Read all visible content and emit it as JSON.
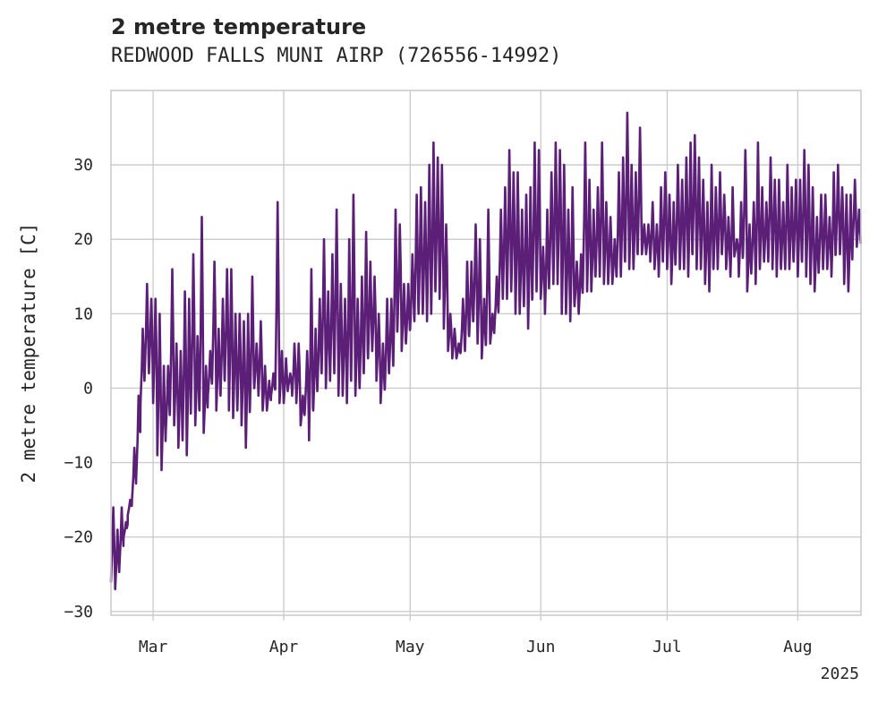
{
  "chart_data": {
    "type": "line",
    "title": "2 metre temperature",
    "subtitle": "REDWOOD FALLS MUNI AIRP (726556-14992)",
    "xlabel": "",
    "ylabel": "2 metre temperature [C]",
    "xlim": [
      "2025-02-19",
      "2025-08-16"
    ],
    "ylim": [
      -30.5,
      40
    ],
    "grid": true,
    "yticks": [
      -30,
      -20,
      -10,
      0,
      10,
      20,
      30
    ],
    "ytick_labels": [
      "−30",
      "−20",
      "−10",
      "0",
      "10",
      "20",
      "30"
    ],
    "xticks": [
      {
        "date": "2025-03-01",
        "label": "Mar"
      },
      {
        "date": "2025-04-01",
        "label": "Apr"
      },
      {
        "date": "2025-05-01",
        "label": "May"
      },
      {
        "date": "2025-06-01",
        "label": "Jun"
      },
      {
        "date": "2025-07-01",
        "label": "Jul"
      },
      {
        "date": "2025-08-01",
        "label": "Aug"
      }
    ],
    "x_offset_label": "2025",
    "line_color": "#5b1f78",
    "series": [
      {
        "x": [
          "2025-02-19",
          "2025-02-20",
          "2025-02-21",
          "2025-02-22",
          "2025-02-23",
          "2025-02-24",
          "2025-02-25",
          "2025-02-26",
          "2025-02-27",
          "2025-02-28",
          "2025-03-01",
          "2025-03-02",
          "2025-03-03",
          "2025-03-04",
          "2025-03-05",
          "2025-03-06",
          "2025-03-07",
          "2025-03-08",
          "2025-03-09",
          "2025-03-10",
          "2025-03-11",
          "2025-03-12",
          "2025-03-13",
          "2025-03-14",
          "2025-03-15",
          "2025-03-16",
          "2025-03-17",
          "2025-03-18",
          "2025-03-19",
          "2025-03-20",
          "2025-03-21",
          "2025-03-22",
          "2025-03-23",
          "2025-03-24",
          "2025-03-25",
          "2025-03-26",
          "2025-03-27",
          "2025-03-28",
          "2025-03-29",
          "2025-03-30",
          "2025-03-31",
          "2025-04-01",
          "2025-04-02",
          "2025-04-03",
          "2025-04-04",
          "2025-04-05",
          "2025-04-06",
          "2025-04-07",
          "2025-04-08",
          "2025-04-09",
          "2025-04-10",
          "2025-04-11",
          "2025-04-12",
          "2025-04-13",
          "2025-04-14",
          "2025-04-15",
          "2025-04-16",
          "2025-04-17",
          "2025-04-18",
          "2025-04-19",
          "2025-04-20",
          "2025-04-21",
          "2025-04-22",
          "2025-04-23",
          "2025-04-24",
          "2025-04-25",
          "2025-04-26",
          "2025-04-27",
          "2025-04-28",
          "2025-04-29",
          "2025-04-30",
          "2025-05-01",
          "2025-05-02",
          "2025-05-03",
          "2025-05-04",
          "2025-05-05",
          "2025-05-06",
          "2025-05-07",
          "2025-05-08",
          "2025-05-09",
          "2025-05-10",
          "2025-05-11",
          "2025-05-12",
          "2025-05-13",
          "2025-05-14",
          "2025-05-15",
          "2025-05-16",
          "2025-05-17",
          "2025-05-18",
          "2025-05-19",
          "2025-05-20",
          "2025-05-21",
          "2025-05-22",
          "2025-05-23",
          "2025-05-24",
          "2025-05-25",
          "2025-05-26",
          "2025-05-27",
          "2025-05-28",
          "2025-05-29",
          "2025-05-30",
          "2025-05-31",
          "2025-06-01",
          "2025-06-02",
          "2025-06-03",
          "2025-06-04",
          "2025-06-05",
          "2025-06-06",
          "2025-06-07",
          "2025-06-08",
          "2025-06-09",
          "2025-06-10",
          "2025-06-11",
          "2025-06-12",
          "2025-06-13",
          "2025-06-14",
          "2025-06-15",
          "2025-06-16",
          "2025-06-17",
          "2025-06-18",
          "2025-06-19",
          "2025-06-20",
          "2025-06-21",
          "2025-06-22",
          "2025-06-23",
          "2025-06-24",
          "2025-06-25",
          "2025-06-26",
          "2025-06-27",
          "2025-06-28",
          "2025-06-29",
          "2025-06-30",
          "2025-07-01",
          "2025-07-02",
          "2025-07-03",
          "2025-07-04",
          "2025-07-05",
          "2025-07-06",
          "2025-07-07",
          "2025-07-08",
          "2025-07-09",
          "2025-07-10",
          "2025-07-11",
          "2025-07-12",
          "2025-07-13",
          "2025-07-14",
          "2025-07-15",
          "2025-07-16",
          "2025-07-17",
          "2025-07-18",
          "2025-07-19",
          "2025-07-20",
          "2025-07-21",
          "2025-07-22",
          "2025-07-23",
          "2025-07-24",
          "2025-07-25",
          "2025-07-26",
          "2025-07-27",
          "2025-07-28",
          "2025-07-29",
          "2025-07-30",
          "2025-07-31",
          "2025-08-01",
          "2025-08-02",
          "2025-08-03",
          "2025-08-04",
          "2025-08-05",
          "2025-08-06",
          "2025-08-07",
          "2025-08-08",
          "2025-08-09",
          "2025-08-10",
          "2025-08-11",
          "2025-08-12",
          "2025-08-13",
          "2025-08-14",
          "2025-08-15"
        ],
        "max": [
          -16,
          -19,
          -16,
          -18,
          -15,
          -8,
          -1,
          8,
          14,
          12,
          12,
          10,
          3,
          3,
          16,
          6,
          5,
          13,
          12,
          18,
          7,
          23,
          3,
          5,
          17,
          8,
          12,
          16,
          16,
          10,
          10,
          9,
          10,
          15,
          6,
          9,
          3,
          1,
          2,
          25,
          5,
          4,
          2,
          6,
          6,
          -1,
          5,
          16,
          8,
          12,
          20,
          13,
          18,
          24,
          14,
          12,
          20,
          26,
          12,
          15,
          21,
          17,
          15,
          10,
          6,
          12,
          12,
          24,
          22,
          14,
          14,
          18,
          26,
          27,
          25,
          30,
          33,
          31,
          30,
          22,
          10,
          8,
          6,
          12,
          17,
          17,
          22,
          20,
          12,
          24,
          10,
          15,
          24,
          27,
          32,
          29,
          29,
          24,
          26,
          27,
          33,
          32,
          19,
          24,
          29,
          33,
          32,
          30,
          24,
          27,
          17,
          18,
          33,
          28,
          24,
          27,
          33,
          25,
          23,
          20,
          29,
          31,
          37,
          30,
          29,
          35,
          22,
          22,
          25,
          22,
          27,
          29,
          26,
          25,
          30,
          28,
          31,
          33,
          34,
          31,
          28,
          25,
          30,
          27,
          29,
          26,
          23,
          27,
          20,
          25,
          32,
          22,
          25,
          33,
          27,
          25,
          31,
          28,
          28,
          25,
          30,
          27,
          28,
          28,
          32,
          30,
          27,
          23,
          26,
          26,
          23,
          29,
          30,
          27,
          26,
          26,
          28,
          24
        ],
        "min": [
          -26,
          -27,
          -24,
          -20,
          -17,
          -15,
          -12,
          -2,
          2,
          2,
          -2,
          -9,
          -11,
          -6,
          -3,
          -5,
          -8,
          -7,
          -9,
          -2,
          -5,
          -3,
          -6,
          -1,
          1,
          -3,
          -1,
          1,
          -3,
          -4,
          -3,
          -5,
          -8,
          -2,
          0,
          -1,
          -3,
          -3,
          -1,
          0,
          -2,
          -2,
          0,
          -1,
          -2,
          -5,
          -3,
          -7,
          -3,
          0,
          2,
          0,
          1,
          2,
          -1,
          -1,
          -2,
          1,
          -1,
          0,
          2,
          4,
          5,
          1,
          -2,
          0,
          2,
          3,
          8,
          5,
          6,
          8,
          9,
          10,
          10,
          9,
          10,
          13,
          12,
          8,
          5,
          4,
          4,
          5,
          5,
          7,
          9,
          6,
          4,
          6,
          6,
          8,
          11,
          12,
          12,
          13,
          10,
          10,
          11,
          8,
          12,
          13,
          12,
          10,
          14,
          14,
          14,
          10,
          10,
          9,
          11,
          10,
          14,
          13,
          13,
          15,
          15,
          14,
          14,
          14,
          15,
          15,
          17,
          16,
          16,
          18,
          18,
          18,
          17,
          16,
          15,
          17,
          16,
          14,
          17,
          16,
          16,
          15,
          18,
          16,
          16,
          14,
          13,
          16,
          16,
          18,
          16,
          15,
          18,
          15,
          18,
          13,
          16,
          14,
          16,
          17,
          17,
          16,
          15,
          16,
          16,
          16,
          17,
          15,
          17,
          15,
          14,
          13,
          16,
          16,
          16,
          15,
          18,
          18,
          14,
          13,
          19,
          19
        ]
      }
    ]
  }
}
